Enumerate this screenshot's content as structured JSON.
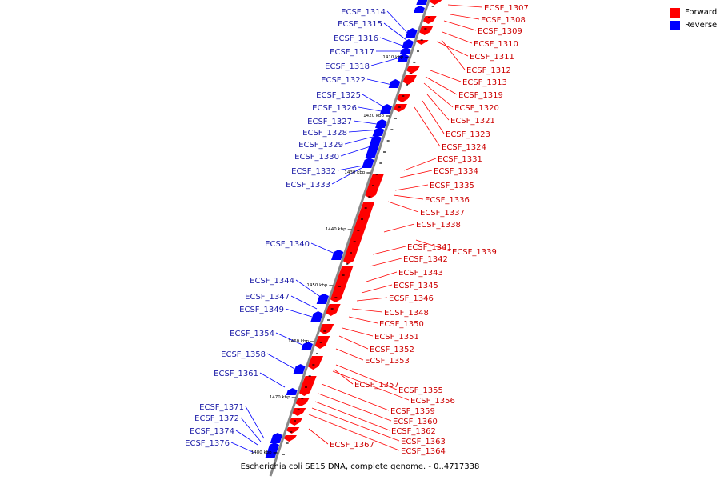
{
  "caption": "Escherichia coli SE15 DNA, complete genome. - 0..4717338",
  "legend": [
    {
      "label": "Forward",
      "color": "#ff0000"
    },
    {
      "label": "Reverse",
      "color": "#0000ff"
    }
  ],
  "colors": {
    "forward": "#ff0000",
    "reverse": "#0000ff",
    "backbone": "#888888"
  },
  "ticks": [
    "1410 kbp",
    "1420 kbp",
    "1430 kbp",
    "1440 kbp",
    "1450 kbp",
    "1460 kbp",
    "1470 kbp",
    "1480 kbp"
  ],
  "forward_labels": [
    "ECSF_1307",
    "ECSF_1308",
    "ECSF_1309",
    "ECSF_1310",
    "ECSF_1311",
    "ECSF_1312",
    "ECSF_1313",
    "ECSF_1319",
    "ECSF_1320",
    "ECSF_1321",
    "ECSF_1323",
    "ECSF_1324",
    "ECSF_1331",
    "ECSF_1334",
    "ECSF_1335",
    "ECSF_1336",
    "ECSF_1337",
    "ECSF_1338",
    "ECSF_1341",
    "ECSF_1339",
    "ECSF_1342",
    "ECSF_1343",
    "ECSF_1345",
    "ECSF_1346",
    "ECSF_1348",
    "ECSF_1350",
    "ECSF_1351",
    "ECSF_1352",
    "ECSF_1353",
    "ECSF_1357",
    "ECSF_1355",
    "ECSF_1356",
    "ECSF_1359",
    "ECSF_1360",
    "ECSF_1362",
    "ECSF_1363",
    "ECSF_1364",
    "ECSF_1367"
  ],
  "reverse_labels": [
    "ECSF_1314",
    "ECSF_1315",
    "ECSF_1316",
    "ECSF_1317",
    "ECSF_1318",
    "ECSF_1322",
    "ECSF_1325",
    "ECSF_1326",
    "ECSF_1327",
    "ECSF_1328",
    "ECSF_1329",
    "ECSF_1330",
    "ECSF_1332",
    "ECSF_1333",
    "ECSF_1340",
    "ECSF_1344",
    "ECSF_1347",
    "ECSF_1349",
    "ECSF_1354",
    "ECSF_1358",
    "ECSF_1361",
    "ECSF_1371",
    "ECSF_1372",
    "ECSF_1374",
    "ECSF_1376"
  ]
}
